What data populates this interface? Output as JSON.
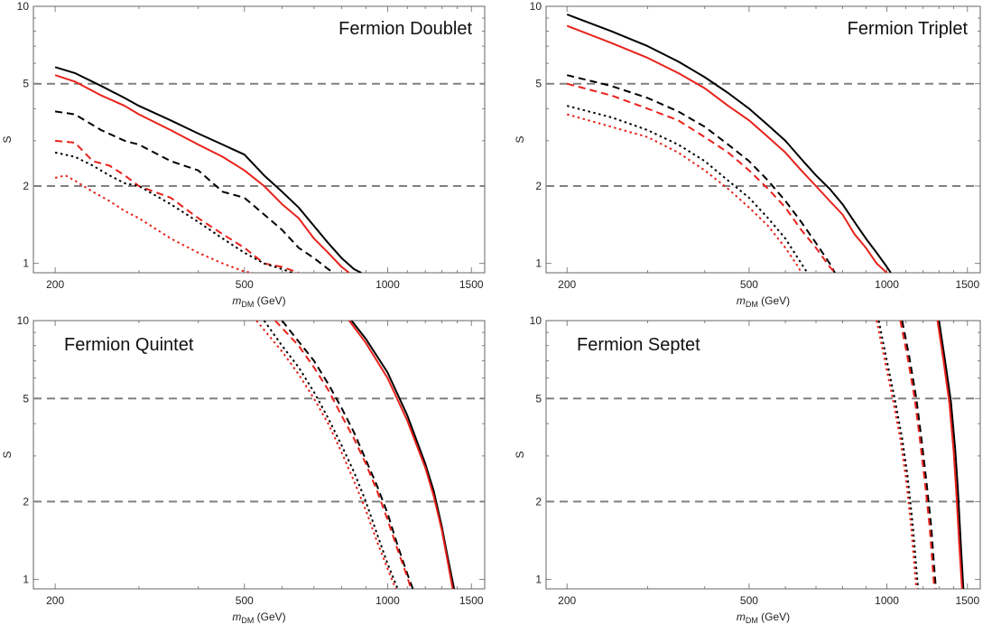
{
  "chart_data": [
    {
      "type": "line",
      "title": "Fermion Doublet",
      "xlabel_italic": "m",
      "xlabel_sub": "DM",
      "xlabel_rest": " (GeV)",
      "ylabel": "S",
      "xscale": "log",
      "yscale": "log",
      "xlim": [
        180,
        1600
      ],
      "ylim": [
        0.92,
        10
      ],
      "xticks": [
        200,
        500,
        1000,
        1500
      ],
      "yticks": [
        1,
        2,
        5,
        10
      ],
      "reference_lines": [
        5,
        2
      ],
      "series": [
        {
          "color": "#000000",
          "dash": "solid",
          "x": [
            200,
            220,
            250,
            280,
            300,
            350,
            400,
            450,
            500,
            550,
            600,
            650,
            700,
            750,
            800,
            850,
            880
          ],
          "y": [
            5.8,
            5.5,
            4.9,
            4.4,
            4.1,
            3.6,
            3.2,
            2.9,
            2.65,
            2.2,
            1.9,
            1.65,
            1.4,
            1.2,
            1.05,
            0.95,
            0.92
          ]
        },
        {
          "color": "#e8221b",
          "dash": "solid",
          "x": [
            200,
            220,
            250,
            280,
            300,
            350,
            400,
            450,
            500,
            550,
            600,
            650,
            700,
            750,
            800,
            830
          ],
          "y": [
            5.4,
            5.1,
            4.5,
            4.1,
            3.8,
            3.3,
            2.9,
            2.6,
            2.3,
            2.0,
            1.7,
            1.5,
            1.25,
            1.1,
            0.97,
            0.92
          ]
        },
        {
          "color": "#000000",
          "dash": "dash",
          "x": [
            200,
            220,
            250,
            280,
            300,
            350,
            400,
            450,
            500,
            550,
            600,
            650,
            700,
            750,
            770
          ],
          "y": [
            3.9,
            3.8,
            3.3,
            3.0,
            2.9,
            2.5,
            2.3,
            1.9,
            1.8,
            1.55,
            1.35,
            1.15,
            1.05,
            0.95,
            0.92
          ]
        },
        {
          "color": "#e8221b",
          "dash": "dash",
          "x": [
            200,
            220,
            240,
            260,
            280,
            300,
            350,
            400,
            450,
            500,
            550,
            600,
            650
          ],
          "y": [
            3.0,
            2.95,
            2.5,
            2.4,
            2.2,
            2.0,
            1.8,
            1.5,
            1.3,
            1.15,
            1.0,
            0.97,
            0.92
          ]
        },
        {
          "color": "#000000",
          "dash": "dot",
          "x": [
            200,
            220,
            240,
            260,
            280,
            300,
            350,
            400,
            450,
            500,
            550,
            600,
            630
          ],
          "y": [
            2.7,
            2.6,
            2.4,
            2.2,
            2.05,
            2.0,
            1.7,
            1.45,
            1.25,
            1.1,
            1.0,
            0.95,
            0.92
          ]
        },
        {
          "color": "#e8221b",
          "dash": "dot",
          "x": [
            200,
            210,
            220,
            240,
            260,
            280,
            300,
            350,
            400,
            450,
            500,
            520
          ],
          "y": [
            2.15,
            2.2,
            2.1,
            1.9,
            1.75,
            1.6,
            1.5,
            1.25,
            1.1,
            1.0,
            0.93,
            0.92
          ]
        }
      ]
    },
    {
      "type": "line",
      "title": "Fermion Triplet",
      "xlabel_italic": "m",
      "xlabel_sub": "DM",
      "xlabel_rest": " (GeV)",
      "ylabel": "S",
      "xscale": "log",
      "yscale": "log",
      "xlim": [
        180,
        1600
      ],
      "ylim": [
        0.92,
        10
      ],
      "xticks": [
        200,
        500,
        1000,
        1500
      ],
      "yticks": [
        1,
        2,
        5,
        10
      ],
      "reference_lines": [
        5,
        2
      ],
      "series": [
        {
          "color": "#000000",
          "dash": "solid",
          "x": [
            200,
            250,
            300,
            350,
            400,
            450,
            500,
            550,
            600,
            650,
            700,
            750,
            800,
            850,
            900,
            950,
            1000,
            1020
          ],
          "y": [
            9.3,
            8.0,
            7.0,
            6.1,
            5.3,
            4.6,
            4.0,
            3.45,
            3.0,
            2.55,
            2.2,
            1.95,
            1.7,
            1.45,
            1.25,
            1.1,
            0.97,
            0.92
          ]
        },
        {
          "color": "#e8221b",
          "dash": "solid",
          "x": [
            200,
            250,
            300,
            350,
            400,
            450,
            500,
            550,
            600,
            650,
            700,
            750,
            800,
            850,
            900,
            950,
            1000
          ],
          "y": [
            8.4,
            7.2,
            6.3,
            5.5,
            4.8,
            4.1,
            3.6,
            3.1,
            2.7,
            2.3,
            2.0,
            1.75,
            1.55,
            1.3,
            1.15,
            1.0,
            0.92
          ]
        },
        {
          "color": "#000000",
          "dash": "dash",
          "x": [
            200,
            250,
            300,
            350,
            400,
            450,
            500,
            550,
            600,
            650,
            700,
            750,
            770
          ],
          "y": [
            5.4,
            4.9,
            4.4,
            3.9,
            3.4,
            2.9,
            2.5,
            2.1,
            1.75,
            1.45,
            1.2,
            1.0,
            0.92
          ]
        },
        {
          "color": "#e8221b",
          "dash": "dash",
          "x": [
            200,
            250,
            300,
            350,
            400,
            450,
            500,
            550,
            600,
            650,
            700,
            750,
            770
          ],
          "y": [
            5.0,
            4.5,
            4.0,
            3.6,
            3.1,
            2.7,
            2.3,
            1.95,
            1.65,
            1.35,
            1.15,
            0.97,
            0.92
          ]
        },
        {
          "color": "#000000",
          "dash": "dot",
          "x": [
            200,
            250,
            300,
            350,
            400,
            450,
            500,
            550,
            600,
            650,
            670
          ],
          "y": [
            4.1,
            3.7,
            3.3,
            2.9,
            2.5,
            2.1,
            1.8,
            1.5,
            1.25,
            1.0,
            0.92
          ]
        },
        {
          "color": "#e8221b",
          "dash": "dot",
          "x": [
            200,
            250,
            300,
            350,
            400,
            450,
            500,
            550,
            600,
            640,
            650
          ],
          "y": [
            3.8,
            3.4,
            3.1,
            2.7,
            2.3,
            1.95,
            1.65,
            1.4,
            1.15,
            0.97,
            0.92
          ]
        }
      ]
    },
    {
      "type": "line",
      "title": "Fermion Quintet",
      "xlabel_italic": "m",
      "xlabel_sub": "DM",
      "xlabel_rest": " (GeV)",
      "ylabel": "S",
      "xscale": "log",
      "yscale": "log",
      "xlim": [
        180,
        1600
      ],
      "ylim": [
        0.92,
        10
      ],
      "xticks": [
        200,
        500,
        1000,
        1500
      ],
      "yticks": [
        1,
        2,
        5,
        10
      ],
      "reference_lines": [
        5,
        2
      ],
      "series": [
        {
          "color": "#000000",
          "dash": "solid",
          "x": [
            840,
            900,
            1000,
            1100,
            1200,
            1250,
            1300,
            1340,
            1380
          ],
          "y": [
            10,
            8.5,
            6.3,
            4.3,
            2.8,
            2.2,
            1.6,
            1.2,
            0.92
          ]
        },
        {
          "color": "#e8221b",
          "dash": "solid",
          "x": [
            830,
            900,
            1000,
            1100,
            1200,
            1250,
            1300,
            1340,
            1370
          ],
          "y": [
            10,
            8.2,
            6.0,
            4.1,
            2.7,
            2.1,
            1.55,
            1.15,
            0.92
          ]
        },
        {
          "color": "#000000",
          "dash": "dash",
          "x": [
            600,
            650,
            700,
            750,
            800,
            850,
            900,
            950,
            1000,
            1050,
            1100,
            1130
          ],
          "y": [
            10,
            8.3,
            7.0,
            5.7,
            4.6,
            3.7,
            2.9,
            2.3,
            1.8,
            1.35,
            1.05,
            0.92
          ]
        },
        {
          "color": "#e8221b",
          "dash": "dash",
          "x": [
            580,
            650,
            700,
            750,
            800,
            850,
            900,
            950,
            1000,
            1050,
            1100,
            1120
          ],
          "y": [
            10,
            8.0,
            6.6,
            5.4,
            4.3,
            3.5,
            2.8,
            2.2,
            1.7,
            1.3,
            1.02,
            0.92
          ]
        },
        {
          "color": "#000000",
          "dash": "dot",
          "x": [
            550,
            600,
            650,
            700,
            750,
            800,
            850,
            900,
            950,
            1000,
            1050
          ],
          "y": [
            10,
            8.0,
            6.6,
            5.3,
            4.2,
            3.3,
            2.6,
            2.0,
            1.5,
            1.15,
            0.92
          ]
        },
        {
          "color": "#e8221b",
          "dash": "dot",
          "x": [
            530,
            600,
            650,
            700,
            750,
            800,
            850,
            900,
            950,
            1000,
            1040
          ],
          "y": [
            10,
            7.6,
            6.2,
            5.0,
            4.0,
            3.1,
            2.4,
            1.85,
            1.4,
            1.1,
            0.92
          ]
        }
      ]
    },
    {
      "type": "line",
      "title": "Fermion Septet",
      "xlabel_italic": "m",
      "xlabel_sub": "DM",
      "xlabel_rest": " (GeV)",
      "ylabel": "S",
      "xscale": "log",
      "yscale": "log",
      "xlim": [
        180,
        1600
      ],
      "ylim": [
        0.92,
        10
      ],
      "xticks": [
        200,
        500,
        1000,
        1500
      ],
      "yticks": [
        1,
        2,
        5,
        10
      ],
      "reference_lines": [
        5,
        2
      ],
      "series": [
        {
          "color": "#000000",
          "dash": "solid",
          "x": [
            1300,
            1340,
            1380,
            1410,
            1430,
            1450,
            1470
          ],
          "y": [
            10,
            7.0,
            4.9,
            3.2,
            2.2,
            1.4,
            0.92
          ]
        },
        {
          "color": "#e8221b",
          "dash": "solid",
          "x": [
            1290,
            1330,
            1370,
            1400,
            1420,
            1440,
            1460
          ],
          "y": [
            10,
            7.0,
            4.8,
            3.1,
            2.1,
            1.35,
            0.92
          ]
        },
        {
          "color": "#000000",
          "dash": "dash",
          "x": [
            1080,
            1120,
            1160,
            1190,
            1220,
            1250,
            1270,
            1280
          ],
          "y": [
            10,
            7.2,
            5.0,
            3.5,
            2.4,
            1.6,
            1.1,
            0.92
          ]
        },
        {
          "color": "#e8221b",
          "dash": "dash",
          "x": [
            1070,
            1110,
            1150,
            1180,
            1210,
            1240,
            1260,
            1270
          ],
          "y": [
            10,
            7.2,
            5.0,
            3.5,
            2.4,
            1.6,
            1.1,
            0.92
          ]
        },
        {
          "color": "#000000",
          "dash": "dot",
          "x": [
            960,
            1000,
            1040,
            1080,
            1110,
            1140,
            1160,
            1170
          ],
          "y": [
            10,
            7.0,
            5.0,
            3.5,
            2.5,
            1.6,
            1.1,
            0.92
          ]
        },
        {
          "color": "#e8221b",
          "dash": "dot",
          "x": [
            950,
            990,
            1030,
            1070,
            1100,
            1130,
            1150,
            1160
          ],
          "y": [
            10,
            7.0,
            5.0,
            3.5,
            2.5,
            1.6,
            1.1,
            0.92
          ]
        }
      ]
    }
  ]
}
